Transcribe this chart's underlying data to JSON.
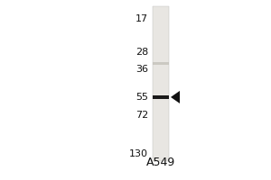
{
  "title": "A549",
  "mw_markers": [
    130,
    72,
    55,
    36,
    28,
    17
  ],
  "band_mw": 55,
  "faint_band_mw": 33,
  "background_color": "#ffffff",
  "lane_color": "#e8e6e2",
  "band_color": "#1a1a1a",
  "faint_band_color": "#c0bdb5",
  "arrow_color": "#111111",
  "title_fontsize": 9,
  "marker_fontsize": 8
}
